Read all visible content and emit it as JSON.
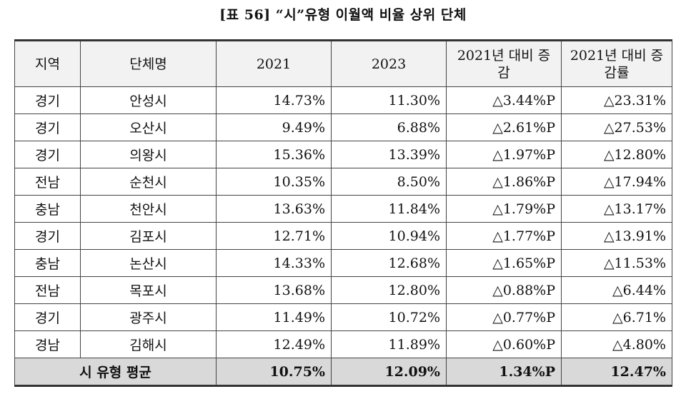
{
  "title": "[표 56] “시”유형 이월액 비율 상위 단체",
  "table": {
    "headers": [
      "지역",
      "단체명",
      "2021",
      "2023",
      "2021년 대비 증감",
      "2021년 대비 증감률"
    ],
    "rows": [
      [
        "경기",
        "안성시",
        "14.73%",
        "11.30%",
        "△3.44%P",
        "△23.31%"
      ],
      [
        "경기",
        "오산시",
        "9.49%",
        "6.88%",
        "△2.61%P",
        "△27.53%"
      ],
      [
        "경기",
        "의왕시",
        "15.36%",
        "13.39%",
        "△1.97%P",
        "△12.80%"
      ],
      [
        "전남",
        "순천시",
        "10.35%",
        "8.50%",
        "△1.86%P",
        "△17.94%"
      ],
      [
        "충남",
        "천안시",
        "13.63%",
        "11.84%",
        "△1.79%P",
        "△13.17%"
      ],
      [
        "경기",
        "김포시",
        "12.71%",
        "10.94%",
        "△1.77%P",
        "△13.91%"
      ],
      [
        "충남",
        "논산시",
        "14.33%",
        "12.68%",
        "△1.65%P",
        "△11.53%"
      ],
      [
        "전남",
        "목포시",
        "13.68%",
        "12.80%",
        "△0.88%P",
        "△6.44%"
      ],
      [
        "경기",
        "광주시",
        "11.49%",
        "10.72%",
        "△0.77%P",
        "△6.71%"
      ],
      [
        "경남",
        "김해시",
        "12.49%",
        "11.89%",
        "△0.60%P",
        "△4.80%"
      ]
    ],
    "average": {
      "label": "시 유형 평균",
      "values": [
        "10.75%",
        "12.09%",
        "1.34%P",
        "12.47%"
      ]
    }
  }
}
